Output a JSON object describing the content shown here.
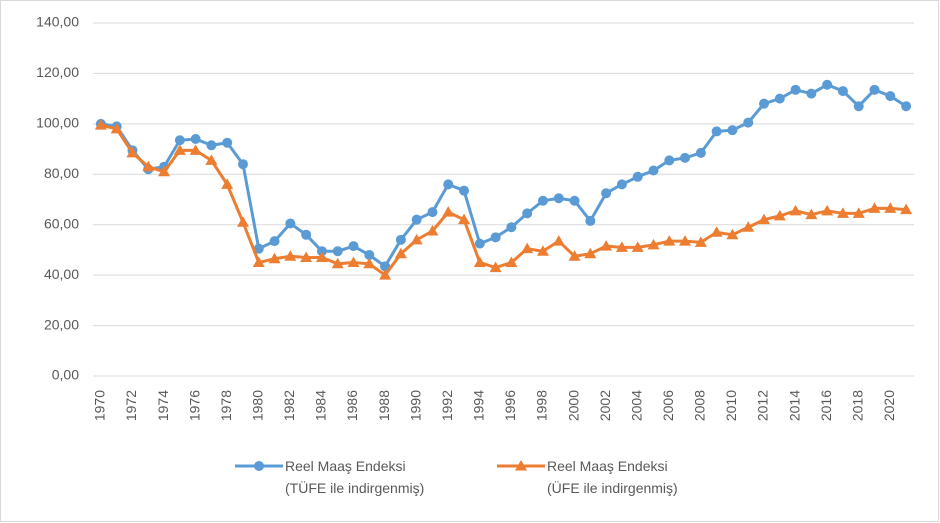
{
  "chart_data": {
    "type": "line",
    "categories": [
      "1970",
      null,
      "1972",
      null,
      "1974",
      null,
      "1976",
      null,
      "1978",
      null,
      "1980",
      null,
      "1982",
      null,
      "1984",
      null,
      "1986",
      null,
      "1988",
      null,
      "1990",
      null,
      "1992",
      null,
      "1994",
      null,
      "1996",
      null,
      "1998",
      null,
      "2000",
      null,
      "2002",
      null,
      "2004",
      null,
      "2006",
      null,
      "2008",
      null,
      "2010",
      null,
      "2012",
      null,
      "2014",
      null,
      "2016",
      null,
      "2018",
      null,
      "2020",
      null
    ],
    "series": [
      {
        "name": "Reel Maaş Endeksi\n(TÜFE ile indirgenmiş)",
        "color": "#5b9bd5",
        "marker": "circle",
        "values": [
          100,
          99,
          89.5,
          82,
          83,
          93.5,
          94,
          91.5,
          92.5,
          84,
          50.5,
          53.5,
          60.5,
          56,
          49.5,
          49.5,
          51.5,
          48,
          43.5,
          54,
          62,
          65,
          76,
          73.5,
          52.5,
          55,
          59,
          64.5,
          69.5,
          70.5,
          69.5,
          61.5,
          72.5,
          76,
          79,
          81.5,
          85.5,
          86.5,
          88.5,
          97,
          97.5,
          100.5,
          108,
          110,
          113.5,
          112,
          115.5,
          113,
          107,
          113.5,
          111,
          107
        ]
      },
      {
        "name": "Reel Maaş Endeksi\n(ÜFE ile indirgenmiş)",
        "color": "#ed7d31",
        "marker": "triangle",
        "values": [
          99.5,
          98,
          88.5,
          83,
          81,
          89.5,
          89.5,
          85.5,
          76,
          61,
          45,
          46.5,
          47.5,
          47,
          47,
          44.5,
          45,
          44.5,
          40,
          48.5,
          54,
          57.5,
          65,
          62,
          45,
          43,
          45,
          50.5,
          49.5,
          53.5,
          47.5,
          48.5,
          51.5,
          51,
          51,
          52,
          53.5,
          53.5,
          53,
          57,
          56,
          59,
          62,
          63.5,
          65.5,
          64,
          65.5,
          64.5,
          64.5,
          66.5,
          66.5,
          66
        ]
      }
    ],
    "ylim": [
      0,
      140
    ],
    "yticks": [
      {
        "value": 0,
        "label": "0,00"
      },
      {
        "value": 20,
        "label": "20,00"
      },
      {
        "value": 40,
        "label": "40,00"
      },
      {
        "value": 60,
        "label": "60,00"
      },
      {
        "value": 80,
        "label": "80,00"
      },
      {
        "value": 100,
        "label": "100,00"
      },
      {
        "value": 120,
        "label": "120,00"
      },
      {
        "value": 140,
        "label": "140,00"
      }
    ],
    "grid": true,
    "legend": "bottom"
  }
}
